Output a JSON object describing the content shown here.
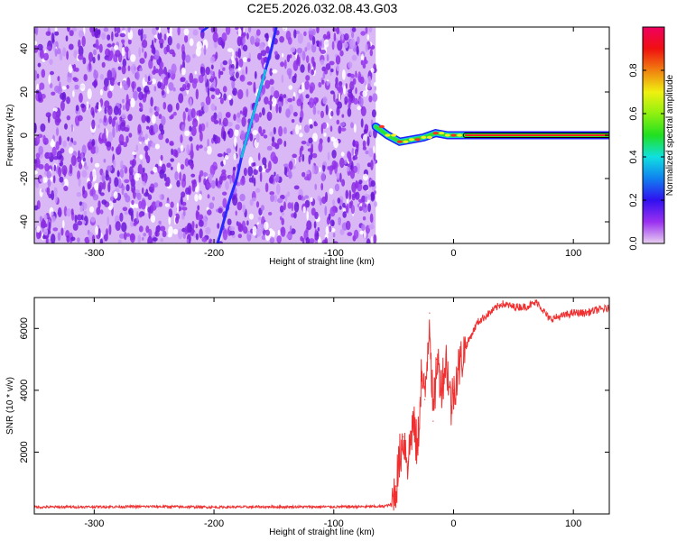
{
  "title": "C2E5.2026.032.08.43.G03",
  "chart_data": [
    {
      "type": "heatmap",
      "xlabel": "Height of straight line (km)",
      "ylabel": "Frequency (Hz)",
      "xlim": [
        -350,
        130
      ],
      "ylim": [
        -50,
        50
      ],
      "xticks": [
        -300,
        -200,
        -100,
        0,
        100
      ],
      "yticks": [
        -40,
        -20,
        0,
        20,
        40
      ],
      "noise_region_x": [
        -350,
        -65
      ],
      "carrier_track": [
        {
          "x": -65,
          "y": 4
        },
        {
          "x": -55,
          "y": 0
        },
        {
          "x": -45,
          "y": -3
        },
        {
          "x": -35,
          "y": -2
        },
        {
          "x": -25,
          "y": -1
        },
        {
          "x": -15,
          "y": 1
        },
        {
          "x": -5,
          "y": 0
        },
        {
          "x": 5,
          "y": 0
        },
        {
          "x": 130,
          "y": 0
        }
      ],
      "striation_1": [
        {
          "x": -197,
          "y": -50
        },
        {
          "x": -192,
          "y": -40
        },
        {
          "x": -187,
          "y": -30
        },
        {
          "x": -181,
          "y": -20
        },
        {
          "x": -177,
          "y": -10
        },
        {
          "x": -172,
          "y": 0
        },
        {
          "x": -167,
          "y": 10
        },
        {
          "x": -162,
          "y": 20
        },
        {
          "x": -157,
          "y": 30
        },
        {
          "x": -152,
          "y": 40
        },
        {
          "x": -148,
          "y": 50
        }
      ],
      "striation_2": [
        {
          "x": -210,
          "y": 48
        },
        {
          "x": -205,
          "y": 50
        }
      ],
      "colorbar": {
        "label": "Normalized spectral amplitude",
        "range": [
          0,
          1
        ],
        "ticks": [
          "0.0",
          "0.2",
          "0.4",
          "0.6",
          "0.8"
        ],
        "colors": [
          "#e8d0f0",
          "#9a30f0",
          "#3010f0",
          "#1080f0",
          "#10e0e0",
          "#20e020",
          "#90f010",
          "#f0f010",
          "#f08010",
          "#f01010",
          "#f00060"
        ]
      }
    },
    {
      "type": "line",
      "xlabel": "Height of straight line (km)",
      "ylabel": "SNR (10 * v/v)",
      "xlim": [
        -350,
        130
      ],
      "ylim": [
        0,
        7000
      ],
      "xticks": [
        -300,
        -200,
        -100,
        0,
        100
      ],
      "yticks": [
        2000,
        4000,
        6000
      ],
      "color": "#f03030",
      "series": [
        {
          "values": [
            [
              -350,
              220
            ],
            [
              -300,
              230
            ],
            [
              -250,
              240
            ],
            [
              -200,
              220
            ],
            [
              -150,
              230
            ],
            [
              -100,
              230
            ],
            [
              -60,
              240
            ],
            [
              -52,
              300
            ],
            [
              -48,
              900
            ],
            [
              -45,
              1800
            ],
            [
              -42,
              2500
            ],
            [
              -38,
              1700
            ],
            [
              -34,
              3000
            ],
            [
              -30,
              2000
            ],
            [
              -27,
              4500
            ],
            [
              -24,
              3700
            ],
            [
              -20,
              6500
            ],
            [
              -17,
              3000
            ],
            [
              -14,
              5000
            ],
            [
              -10,
              4200
            ],
            [
              -6,
              5000
            ],
            [
              -2,
              3500
            ],
            [
              0,
              4000
            ],
            [
              4,
              4700
            ],
            [
              10,
              5400
            ],
            [
              20,
              6200
            ],
            [
              30,
              6500
            ],
            [
              40,
              6800
            ],
            [
              50,
              6700
            ],
            [
              60,
              6700
            ],
            [
              70,
              6850
            ],
            [
              80,
              6300
            ],
            [
              90,
              6400
            ],
            [
              100,
              6500
            ],
            [
              110,
              6500
            ],
            [
              120,
              6600
            ],
            [
              130,
              6650
            ]
          ]
        }
      ]
    }
  ]
}
